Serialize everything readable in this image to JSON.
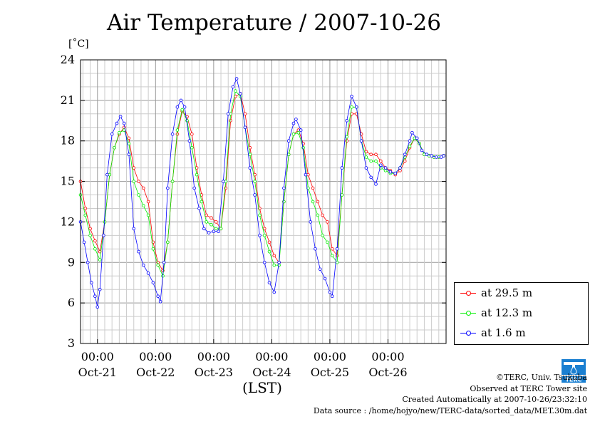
{
  "header": {
    "title": "Air Temperature / 2007-10-26",
    "unit": "[˚C]",
    "x_unit": "(LST)"
  },
  "legend": [
    {
      "label": "at 29.5 m",
      "color": "#ff0000"
    },
    {
      "label": "at 12.3 m",
      "color": "#00ee00"
    },
    {
      "label": "at 1.6 m",
      "color": "#0000ff"
    }
  ],
  "credits": {
    "line1": "©TERC, Univ. Tsukuba",
    "line2": "Observed at TERC Tower site",
    "line3": "Created Automatically at 2007-10-26/23:32:10",
    "line4": "Data source : /home/hojyo/new/TERC-data/sorted_data/MET.30m.dat"
  },
  "logo": {
    "text": "TERC",
    "icon": "terc-logo-icon"
  },
  "chart_data": {
    "type": "line",
    "title": "Air Temperature / 2007-10-26",
    "ylabel": "[˚C]",
    "xlabel": "(LST)",
    "ylim": [
      3,
      24
    ],
    "yticks": [
      3,
      6,
      9,
      12,
      15,
      18,
      21,
      24
    ],
    "xlim": [
      "2007-10-20 17:00",
      "2007-10-27 00:00"
    ],
    "x_major_ticks": [
      "2007-10-21 00:00",
      "2007-10-22 00:00",
      "2007-10-23 00:00",
      "2007-10-24 00:00",
      "2007-10-25 00:00",
      "2007-10-26 00:00"
    ],
    "x_tick_time_label": "00:00",
    "x_date_labels": [
      {
        "label": "Oct-21",
        "at": "2007-10-21 00:00"
      },
      {
        "label": "Oct-22",
        "at": "2007-10-22 00:00"
      },
      {
        "label": "Oct-23",
        "at": "2007-10-23 00:00"
      },
      {
        "label": "Oct-24",
        "at": "2007-10-24 00:00"
      },
      {
        "label": "Oct-25",
        "at": "2007-10-25 00:00"
      },
      {
        "label": "Oct-26",
        "at": "2007-10-26 00:00"
      }
    ],
    "grid": true,
    "legend_position": "outside-right-bottom",
    "series": [
      {
        "name": "at 29.5 m",
        "color": "#ff0000",
        "points": [
          [
            "2007-10-20 17:00",
            15.0
          ],
          [
            "2007-10-20 19:00",
            13.0
          ],
          [
            "2007-10-20 21:00",
            11.5
          ],
          [
            "2007-10-20 23:00",
            10.6
          ],
          [
            "2007-10-21 01:00",
            9.8
          ],
          [
            "2007-10-21 03:00",
            12.0
          ],
          [
            "2007-10-21 05:00",
            15.5
          ],
          [
            "2007-10-21 07:00",
            17.5
          ],
          [
            "2007-10-21 09:00",
            18.5
          ],
          [
            "2007-10-21 11:00",
            19.0
          ],
          [
            "2007-10-21 13:00",
            18.2
          ],
          [
            "2007-10-21 15:00",
            16.0
          ],
          [
            "2007-10-21 17:00",
            15.0
          ],
          [
            "2007-10-21 19:00",
            14.5
          ],
          [
            "2007-10-21 21:00",
            13.5
          ],
          [
            "2007-10-21 23:00",
            10.5
          ],
          [
            "2007-10-22 01:00",
            9.0
          ],
          [
            "2007-10-22 03:00",
            8.4
          ],
          [
            "2007-10-22 05:00",
            10.5
          ],
          [
            "2007-10-22 07:00",
            15.0
          ],
          [
            "2007-10-22 09:00",
            18.5
          ],
          [
            "2007-10-22 11:00",
            20.2
          ],
          [
            "2007-10-22 13:00",
            19.8
          ],
          [
            "2007-10-22 15:00",
            18.5
          ],
          [
            "2007-10-22 17:00",
            16.0
          ],
          [
            "2007-10-22 19:00",
            14.0
          ],
          [
            "2007-10-22 21:00",
            12.5
          ],
          [
            "2007-10-22 23:00",
            12.3
          ],
          [
            "2007-10-23 01:00",
            12.0
          ],
          [
            "2007-10-23 03:00",
            11.5
          ],
          [
            "2007-10-23 05:00",
            14.5
          ],
          [
            "2007-10-23 07:00",
            19.5
          ],
          [
            "2007-10-23 09:00",
            21.3
          ],
          [
            "2007-10-23 11:00",
            21.5
          ],
          [
            "2007-10-23 13:00",
            20.0
          ],
          [
            "2007-10-23 15:00",
            17.5
          ],
          [
            "2007-10-23 17:00",
            15.5
          ],
          [
            "2007-10-23 19:00",
            13.0
          ],
          [
            "2007-10-23 21:00",
            11.5
          ],
          [
            "2007-10-23 23:00",
            10.5
          ],
          [
            "2007-10-24 01:00",
            9.5
          ],
          [
            "2007-10-24 03:00",
            9.0
          ],
          [
            "2007-10-24 05:00",
            13.5
          ],
          [
            "2007-10-24 07:00",
            17.0
          ],
          [
            "2007-10-24 09:00",
            18.5
          ],
          [
            "2007-10-24 11:00",
            18.8
          ],
          [
            "2007-10-24 13:00",
            17.8
          ],
          [
            "2007-10-24 15:00",
            15.5
          ],
          [
            "2007-10-24 17:00",
            14.5
          ],
          [
            "2007-10-24 19:00",
            13.5
          ],
          [
            "2007-10-24 21:00",
            12.5
          ],
          [
            "2007-10-24 23:00",
            12.0
          ],
          [
            "2007-10-25 01:00",
            10.0
          ],
          [
            "2007-10-25 03:00",
            9.5
          ],
          [
            "2007-10-25 05:00",
            14.0
          ],
          [
            "2007-10-25 07:00",
            18.0
          ],
          [
            "2007-10-25 09:00",
            20.0
          ],
          [
            "2007-10-25 11:00",
            20.0
          ],
          [
            "2007-10-25 13:00",
            18.5
          ],
          [
            "2007-10-25 15:00",
            17.2
          ],
          [
            "2007-10-25 17:00",
            17.0
          ],
          [
            "2007-10-25 19:00",
            17.0
          ],
          [
            "2007-10-25 21:00",
            16.5
          ],
          [
            "2007-10-25 23:00",
            16.0
          ],
          [
            "2007-10-26 01:00",
            15.8
          ],
          [
            "2007-10-26 03:00",
            15.5
          ],
          [
            "2007-10-26 05:00",
            15.8
          ],
          [
            "2007-10-26 07:00",
            16.5
          ],
          [
            "2007-10-26 09:00",
            17.5
          ],
          [
            "2007-10-26 11:00",
            18.2
          ],
          [
            "2007-10-26 13:00",
            17.8
          ],
          [
            "2007-10-26 15:00",
            17.0
          ],
          [
            "2007-10-26 17:00",
            16.9
          ],
          [
            "2007-10-26 19:00",
            16.8
          ],
          [
            "2007-10-26 21:00",
            16.8
          ],
          [
            "2007-10-26 23:00",
            16.9
          ]
        ]
      },
      {
        "name": "at 12.3 m",
        "color": "#00ee00",
        "points": [
          [
            "2007-10-20 17:00",
            14.0
          ],
          [
            "2007-10-20 19:00",
            12.5
          ],
          [
            "2007-10-20 21:00",
            11.0
          ],
          [
            "2007-10-20 23:00",
            10.0
          ],
          [
            "2007-10-21 01:00",
            9.2
          ],
          [
            "2007-10-21 03:00",
            12.0
          ],
          [
            "2007-10-21 05:00",
            15.5
          ],
          [
            "2007-10-21 07:00",
            17.5
          ],
          [
            "2007-10-21 09:00",
            18.6
          ],
          [
            "2007-10-21 11:00",
            18.8
          ],
          [
            "2007-10-21 13:00",
            17.8
          ],
          [
            "2007-10-21 15:00",
            15.0
          ],
          [
            "2007-10-21 17:00",
            14.0
          ],
          [
            "2007-10-21 19:00",
            13.2
          ],
          [
            "2007-10-21 21:00",
            12.5
          ],
          [
            "2007-10-21 23:00",
            10.0
          ],
          [
            "2007-10-22 01:00",
            8.8
          ],
          [
            "2007-10-22 03:00",
            8.0
          ],
          [
            "2007-10-22 05:00",
            10.5
          ],
          [
            "2007-10-22 07:00",
            15.0
          ],
          [
            "2007-10-22 09:00",
            18.8
          ],
          [
            "2007-10-22 11:00",
            20.3
          ],
          [
            "2007-10-22 13:00",
            19.5
          ],
          [
            "2007-10-22 15:00",
            17.5
          ],
          [
            "2007-10-22 17:00",
            15.5
          ],
          [
            "2007-10-22 19:00",
            13.5
          ],
          [
            "2007-10-22 21:00",
            12.0
          ],
          [
            "2007-10-22 23:00",
            11.8
          ],
          [
            "2007-10-23 01:00",
            11.5
          ],
          [
            "2007-10-23 03:00",
            11.5
          ],
          [
            "2007-10-23 05:00",
            15.0
          ],
          [
            "2007-10-23 07:00",
            20.0
          ],
          [
            "2007-10-23 09:00",
            21.7
          ],
          [
            "2007-10-23 11:00",
            21.3
          ],
          [
            "2007-10-23 13:00",
            19.0
          ],
          [
            "2007-10-23 15:00",
            17.0
          ],
          [
            "2007-10-23 17:00",
            15.0
          ],
          [
            "2007-10-23 19:00",
            12.5
          ],
          [
            "2007-10-23 21:00",
            11.0
          ],
          [
            "2007-10-23 23:00",
            9.8
          ],
          [
            "2007-10-24 01:00",
            8.8
          ],
          [
            "2007-10-24 03:00",
            8.8
          ],
          [
            "2007-10-24 05:00",
            13.5
          ],
          [
            "2007-10-24 07:00",
            17.0
          ],
          [
            "2007-10-24 09:00",
            18.5
          ],
          [
            "2007-10-24 11:00",
            18.6
          ],
          [
            "2007-10-24 13:00",
            17.5
          ],
          [
            "2007-10-24 15:00",
            14.5
          ],
          [
            "2007-10-24 17:00",
            13.5
          ],
          [
            "2007-10-24 19:00",
            12.5
          ],
          [
            "2007-10-24 21:00",
            11.0
          ],
          [
            "2007-10-24 23:00",
            10.5
          ],
          [
            "2007-10-25 01:00",
            9.5
          ],
          [
            "2007-10-25 03:00",
            9.0
          ],
          [
            "2007-10-25 05:00",
            14.0
          ],
          [
            "2007-10-25 07:00",
            18.3
          ],
          [
            "2007-10-25 09:00",
            20.5
          ],
          [
            "2007-10-25 11:00",
            20.5
          ],
          [
            "2007-10-25 13:00",
            18.0
          ],
          [
            "2007-10-25 15:00",
            16.8
          ],
          [
            "2007-10-25 17:00",
            16.5
          ],
          [
            "2007-10-25 19:00",
            16.5
          ],
          [
            "2007-10-25 21:00",
            16.0
          ],
          [
            "2007-10-25 23:00",
            15.8
          ],
          [
            "2007-10-26 01:00",
            15.6
          ],
          [
            "2007-10-26 03:00",
            15.6
          ],
          [
            "2007-10-26 05:00",
            16.0
          ],
          [
            "2007-10-26 07:00",
            16.8
          ],
          [
            "2007-10-26 09:00",
            17.6
          ],
          [
            "2007-10-26 11:00",
            18.2
          ],
          [
            "2007-10-26 13:00",
            17.8
          ],
          [
            "2007-10-26 15:00",
            17.0
          ],
          [
            "2007-10-26 17:00",
            16.9
          ],
          [
            "2007-10-26 19:00",
            16.8
          ],
          [
            "2007-10-26 21:00",
            16.8
          ],
          [
            "2007-10-26 23:00",
            16.9
          ]
        ]
      },
      {
        "name": "at 1.6 m",
        "color": "#0000ff",
        "points": [
          [
            "2007-10-20 17:00",
            12.0
          ],
          [
            "2007-10-20 18:30",
            10.5
          ],
          [
            "2007-10-20 20:00",
            9.0
          ],
          [
            "2007-10-20 21:30",
            7.5
          ],
          [
            "2007-10-20 23:00",
            6.5
          ],
          [
            "2007-10-21 00:00",
            5.7
          ],
          [
            "2007-10-21 01:00",
            7.0
          ],
          [
            "2007-10-21 02:30",
            11.0
          ],
          [
            "2007-10-21 04:00",
            15.5
          ],
          [
            "2007-10-21 06:00",
            18.5
          ],
          [
            "2007-10-21 08:00",
            19.3
          ],
          [
            "2007-10-21 09:30",
            19.8
          ],
          [
            "2007-10-21 11:00",
            19.3
          ],
          [
            "2007-10-21 13:00",
            17.0
          ],
          [
            "2007-10-21 15:00",
            11.5
          ],
          [
            "2007-10-21 17:00",
            9.8
          ],
          [
            "2007-10-21 19:00",
            8.8
          ],
          [
            "2007-10-21 21:00",
            8.2
          ],
          [
            "2007-10-21 23:00",
            7.5
          ],
          [
            "2007-10-22 01:00",
            6.5
          ],
          [
            "2007-10-22 02:00",
            6.1
          ],
          [
            "2007-10-22 03:30",
            9.0
          ],
          [
            "2007-10-22 05:00",
            14.5
          ],
          [
            "2007-10-22 07:00",
            18.5
          ],
          [
            "2007-10-22 09:00",
            20.5
          ],
          [
            "2007-10-22 10:30",
            21.0
          ],
          [
            "2007-10-22 12:00",
            20.5
          ],
          [
            "2007-10-22 14:00",
            18.0
          ],
          [
            "2007-10-22 16:00",
            14.5
          ],
          [
            "2007-10-22 18:00",
            13.0
          ],
          [
            "2007-10-22 20:00",
            11.5
          ],
          [
            "2007-10-22 22:00",
            11.2
          ],
          [
            "2007-10-23 00:00",
            11.3
          ],
          [
            "2007-10-23 02:00",
            11.3
          ],
          [
            "2007-10-23 04:00",
            15.0
          ],
          [
            "2007-10-23 06:00",
            20.0
          ],
          [
            "2007-10-23 08:00",
            22.0
          ],
          [
            "2007-10-23 09:30",
            22.6
          ],
          [
            "2007-10-23 11:00",
            21.5
          ],
          [
            "2007-10-23 13:00",
            19.0
          ],
          [
            "2007-10-23 15:00",
            16.0
          ],
          [
            "2007-10-23 17:00",
            14.0
          ],
          [
            "2007-10-23 19:00",
            11.0
          ],
          [
            "2007-10-23 21:00",
            9.0
          ],
          [
            "2007-10-23 23:00",
            7.5
          ],
          [
            "2007-10-24 01:00",
            6.8
          ],
          [
            "2007-10-24 03:00",
            9.0
          ],
          [
            "2007-10-24 05:00",
            14.5
          ],
          [
            "2007-10-24 07:00",
            18.0
          ],
          [
            "2007-10-24 09:00",
            19.3
          ],
          [
            "2007-10-24 10:00",
            19.6
          ],
          [
            "2007-10-24 12:00",
            18.8
          ],
          [
            "2007-10-24 14:00",
            15.5
          ],
          [
            "2007-10-24 16:00",
            12.0
          ],
          [
            "2007-10-24 18:00",
            10.0
          ],
          [
            "2007-10-24 20:00",
            8.5
          ],
          [
            "2007-10-24 22:00",
            7.8
          ],
          [
            "2007-10-25 00:00",
            6.8
          ],
          [
            "2007-10-25 01:00",
            6.5
          ],
          [
            "2007-10-25 03:00",
            10.0
          ],
          [
            "2007-10-25 05:00",
            16.0
          ],
          [
            "2007-10-25 07:00",
            19.5
          ],
          [
            "2007-10-25 09:00",
            21.3
          ],
          [
            "2007-10-25 11:00",
            20.5
          ],
          [
            "2007-10-25 13:00",
            18.0
          ],
          [
            "2007-10-25 15:00",
            16.0
          ],
          [
            "2007-10-25 17:00",
            15.3
          ],
          [
            "2007-10-25 19:00",
            14.8
          ],
          [
            "2007-10-25 21:00",
            16.2
          ],
          [
            "2007-10-25 23:00",
            16.0
          ],
          [
            "2007-10-26 01:00",
            15.7
          ],
          [
            "2007-10-26 03:00",
            15.6
          ],
          [
            "2007-10-26 05:00",
            16.0
          ],
          [
            "2007-10-26 07:00",
            17.0
          ],
          [
            "2007-10-26 09:00",
            18.0
          ],
          [
            "2007-10-26 10:00",
            18.6
          ],
          [
            "2007-10-26 12:00",
            18.2
          ],
          [
            "2007-10-26 14:00",
            17.3
          ],
          [
            "2007-10-26 16:00",
            17.0
          ],
          [
            "2007-10-26 18:00",
            16.9
          ],
          [
            "2007-10-26 20:00",
            16.8
          ],
          [
            "2007-10-26 22:00",
            16.8
          ],
          [
            "2007-10-26 23:00",
            16.9
          ]
        ]
      }
    ]
  }
}
